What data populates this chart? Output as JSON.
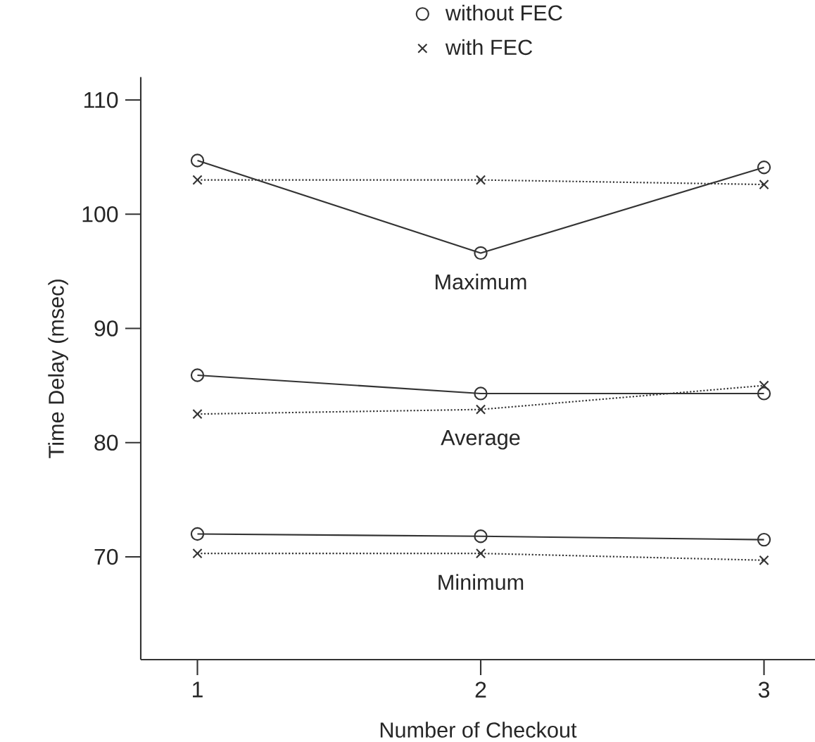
{
  "chart_data": {
    "type": "line",
    "xlabel": "Number of Checkout",
    "ylabel": "Time Delay (msec)",
    "x": [
      1,
      2,
      3
    ],
    "xlim": [
      0.8,
      3.18
    ],
    "ylim": [
      61,
      112
    ],
    "xticks": [
      1,
      2,
      3
    ],
    "yticks": [
      70,
      80,
      90,
      100,
      110
    ],
    "grid": false,
    "legend": "top",
    "series": [
      {
        "name": "without FEC",
        "color": "#333333",
        "marker": "circle",
        "line_style": "solid",
        "values": [
          104.7,
          96.6,
          104.1
        ]
      },
      {
        "name": "with FEC",
        "color": "#333333",
        "marker": "cross",
        "line_style": "dotted",
        "values": [
          103.0,
          103.0,
          102.6
        ]
      },
      {
        "color": "#333333",
        "marker": "circle",
        "line_style": "solid",
        "values": [
          85.9,
          84.3,
          84.3
        ]
      },
      {
        "color": "#333333",
        "marker": "cross",
        "line_style": "dotted",
        "values": [
          82.5,
          82.9,
          85.0
        ]
      },
      {
        "color": "#333333",
        "marker": "circle",
        "line_style": "solid",
        "values": [
          72.0,
          71.8,
          71.5
        ]
      },
      {
        "color": "#333333",
        "marker": "cross",
        "line_style": "dotted",
        "values": [
          70.3,
          70.3,
          69.7
        ]
      }
    ],
    "annotations": [
      "Maximum",
      "Average",
      "Minimum"
    ]
  }
}
